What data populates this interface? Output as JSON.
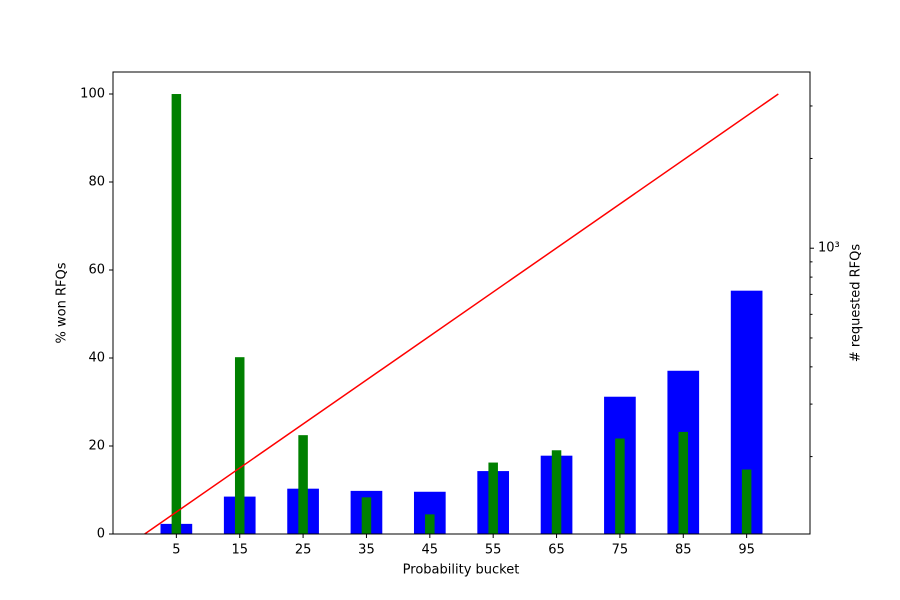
{
  "chart_data": {
    "type": "bar",
    "xlabel": "Probability bucket",
    "ylabel": "% won RFQs",
    "y2label": "# requested RFQs",
    "categories": [
      "5",
      "15",
      "25",
      "35",
      "45",
      "55",
      "65",
      "75",
      "85",
      "95"
    ],
    "x": [
      5,
      15,
      25,
      35,
      45,
      55,
      65,
      75,
      85,
      95
    ],
    "xlim": [
      -5,
      105
    ],
    "ylim": [
      0,
      105
    ],
    "yticks": [
      0,
      20,
      40,
      60,
      80,
      100
    ],
    "y2lim": [
      110,
      3900
    ],
    "y2scale": "log",
    "y2ticks": [
      {
        "value": 1000,
        "label": "10³"
      }
    ],
    "y2minorticks": [
      200,
      300,
      400,
      500,
      600,
      700,
      800,
      900,
      2000,
      3000
    ],
    "series": [
      {
        "type": "bar",
        "color": "#0000ff",
        "values": [
          2.3,
          8.5,
          10.3,
          9.8,
          9.6,
          14.3,
          17.8,
          31.2,
          37.1,
          55.3
        ]
      },
      {
        "type": "bar",
        "color": "#008000",
        "axis": "y2",
        "values": [
          3290,
          431,
          236,
          146,
          128,
          191,
          210,
          230,
          242,
          181
        ]
      },
      {
        "type": "line",
        "color": "#ff0000",
        "x": [
          0,
          100
        ],
        "values": [
          0,
          100
        ]
      }
    ]
  }
}
